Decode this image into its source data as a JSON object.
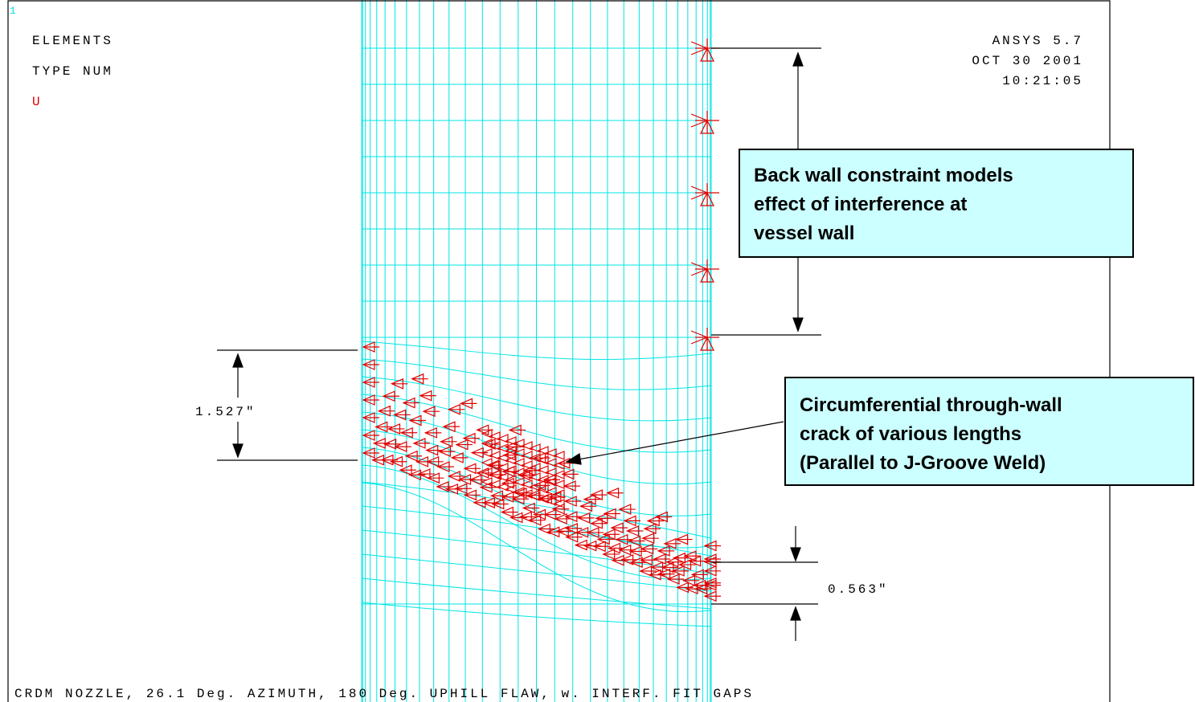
{
  "header": {
    "plot_number": "1",
    "lines": [
      "ELEMENTS",
      "TYPE NUM"
    ],
    "constraint_label": "U"
  },
  "stamp": {
    "program": "ANSYS 5.7",
    "date": "OCT 30 2001",
    "time": "10:21:05"
  },
  "callouts": [
    {
      "lines": [
        "Back wall constraint models",
        "effect of interference at",
        "vessel wall"
      ]
    },
    {
      "lines": [
        "Circumferential through-wall",
        "crack of various lengths",
        "(Parallel to J-Groove Weld)"
      ]
    }
  ],
  "dimensions": {
    "left": "1.527\"",
    "right": "0.563\""
  },
  "footer": "CRDM NOZZLE, 26.1 Deg. AZIMUTH, 180 Deg. UPHILL FLAW, w. INTERF. FIT GAPS"
}
